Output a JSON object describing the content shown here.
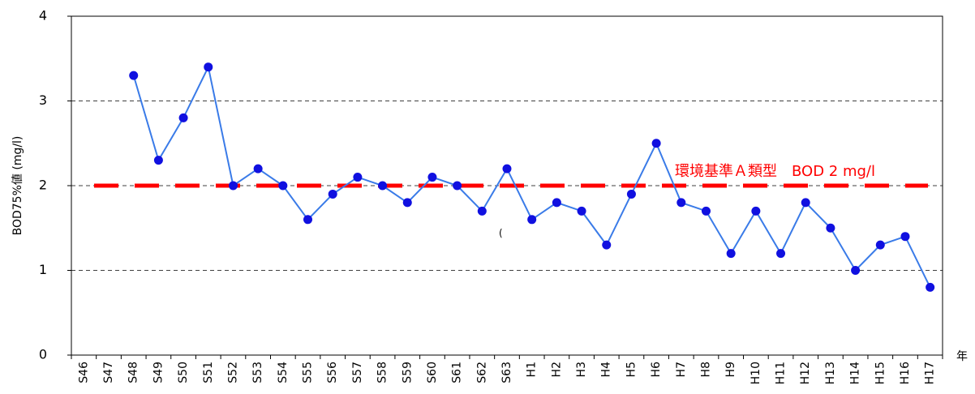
{
  "chart_data": {
    "type": "line",
    "y_label": "BOD75%値 (mg/l)",
    "x_label": "年",
    "categories": [
      "S46",
      "S47",
      "S48",
      "S49",
      "S50",
      "S51",
      "S52",
      "S53",
      "S54",
      "S55",
      "S56",
      "S57",
      "S58",
      "S59",
      "S60",
      "S61",
      "S62",
      "S63",
      "H1",
      "H2",
      "H3",
      "H4",
      "H5",
      "H6",
      "H7",
      "H8",
      "H9",
      "H10",
      "H11",
      "H12",
      "H13",
      "H14",
      "H15",
      "H16",
      "H17"
    ],
    "series": [
      {
        "color": "#3a7be8",
        "marker_color": "#1010e0",
        "values": [
          null,
          null,
          3.3,
          2.3,
          2.8,
          3.4,
          2.0,
          2.2,
          2.0,
          1.6,
          1.9,
          2.1,
          2.0,
          1.8,
          2.1,
          2.0,
          1.7,
          2.2,
          1.6,
          1.8,
          1.7,
          1.3,
          1.9,
          2.5,
          1.8,
          1.7,
          1.2,
          1.7,
          1.2,
          1.8,
          1.5,
          1.0,
          1.3,
          1.4,
          0.8
        ]
      }
    ],
    "reference_line": {
      "value": 2,
      "label": "環境基準Ａ類型　BOD 2 mg/l",
      "color": "#ff0000"
    },
    "stray_text": "(",
    "ylim": [
      0,
      4
    ],
    "yticks": [
      0,
      1,
      2,
      3,
      4
    ],
    "grid": true
  }
}
